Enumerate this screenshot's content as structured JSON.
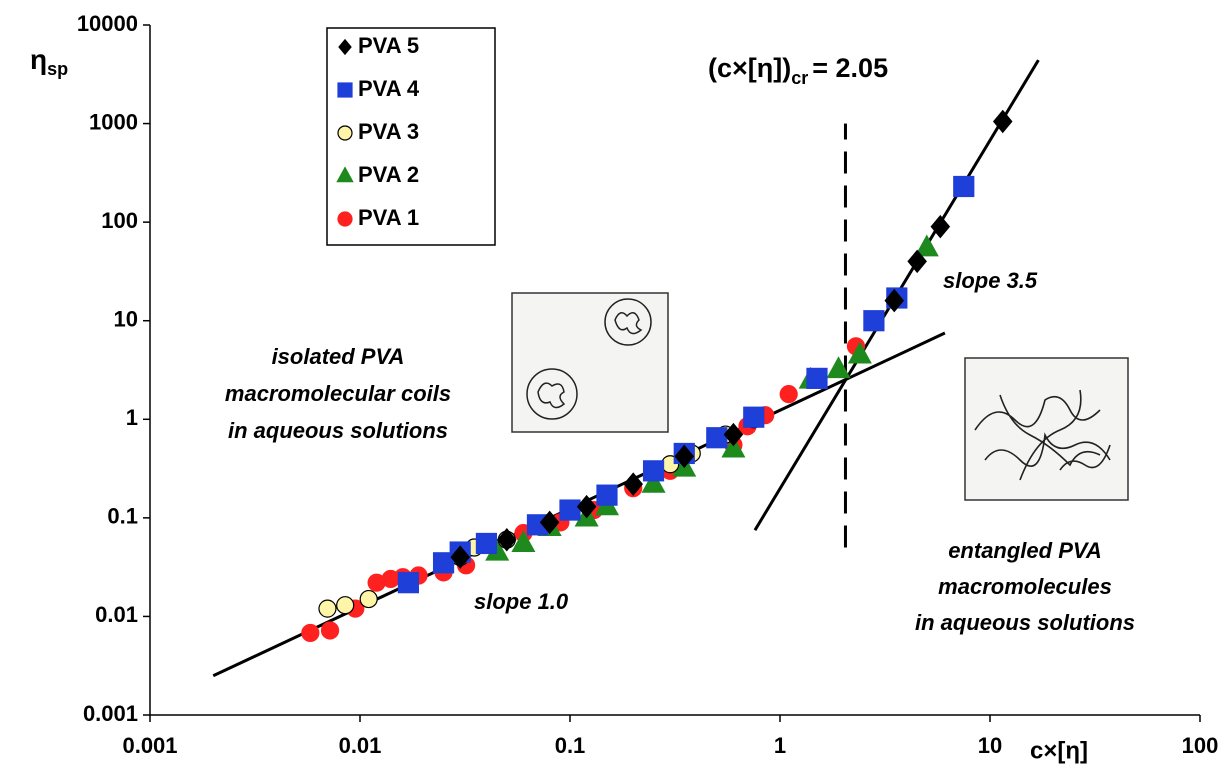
{
  "chart_data": {
    "type": "scatter",
    "xscale": "log",
    "yscale": "log",
    "xlim": [
      0.001,
      100
    ],
    "ylim": [
      0.001,
      10000
    ],
    "xticks": [
      0.001,
      0.01,
      0.1,
      1,
      10,
      100
    ],
    "yticks": [
      0.001,
      0.01,
      0.1,
      1,
      10,
      100,
      1000,
      10000
    ],
    "xlabel": "c×[η]",
    "ylabel_symbol": "η",
    "ylabel_subscript": "sp",
    "legend_position": "upper left",
    "series": [
      {
        "name": "PVA 5",
        "marker": "diamond",
        "color": "#000000",
        "edgecolor": "#000000",
        "x": [
          0.03,
          0.05,
          0.08,
          0.12,
          0.2,
          0.35,
          0.6,
          3.5,
          4.5,
          5.8,
          11.5
        ],
        "values": [
          0.04,
          0.06,
          0.09,
          0.13,
          0.22,
          0.42,
          0.7,
          16,
          40,
          90,
          1050
        ]
      },
      {
        "name": "PVA 4",
        "marker": "square",
        "color": "#1f3fd9",
        "edgecolor": "#1f3fd9",
        "x": [
          0.017,
          0.025,
          0.03,
          0.04,
          0.07,
          0.1,
          0.15,
          0.25,
          0.35,
          0.5,
          0.75,
          1.5,
          2.8,
          3.6,
          7.5
        ],
        "values": [
          0.022,
          0.035,
          0.045,
          0.055,
          0.085,
          0.12,
          0.17,
          0.3,
          0.45,
          0.65,
          1.05,
          2.6,
          10,
          17,
          230
        ]
      },
      {
        "name": "PVA 3",
        "marker": "circle",
        "color": "#fff5a8",
        "edgecolor": "#000000",
        "x": [
          0.007,
          0.0085,
          0.011,
          0.03,
          0.035,
          0.05,
          0.3,
          0.38,
          0.55,
          0.75
        ],
        "values": [
          0.012,
          0.013,
          0.015,
          0.04,
          0.05,
          0.06,
          0.35,
          0.45,
          0.7,
          1.0
        ]
      },
      {
        "name": "PVA 2",
        "marker": "triangle",
        "color": "#1e8a1e",
        "edgecolor": "#1e8a1e",
        "x": [
          0.045,
          0.06,
          0.08,
          0.12,
          0.15,
          0.25,
          0.35,
          0.6,
          1.4,
          1.9,
          2.4,
          5
        ],
        "values": [
          0.045,
          0.055,
          0.08,
          0.1,
          0.13,
          0.22,
          0.32,
          0.5,
          2.5,
          3.2,
          4.5,
          55
        ]
      },
      {
        "name": "PVA 1",
        "marker": "circle",
        "color": "#ff2020",
        "edgecolor": "#ff2020",
        "x": [
          0.0058,
          0.0072,
          0.0095,
          0.012,
          0.014,
          0.016,
          0.019,
          0.025,
          0.032,
          0.06,
          0.09,
          0.13,
          0.2,
          0.3,
          0.6,
          0.7,
          0.85,
          1.1,
          2.3
        ],
        "values": [
          0.0068,
          0.0072,
          0.012,
          0.022,
          0.024,
          0.025,
          0.026,
          0.028,
          0.033,
          0.07,
          0.09,
          0.12,
          0.2,
          0.3,
          0.55,
          0.85,
          1.1,
          1.8,
          5.5
        ]
      }
    ],
    "fit_lines": [
      {
        "x": [
          0.002,
          6.1
        ],
        "y": [
          0.0025,
          7.5
        ]
      },
      {
        "x": [
          0.76,
          17
        ],
        "y": [
          0.075,
          4400
        ]
      }
    ],
    "critical_line": {
      "x": [
        2.05,
        2.05
      ],
      "y": [
        0.05,
        1000
      ]
    },
    "critical_label": {
      "left": "(c×[η])",
      "sub": "cr",
      "right": "= 2.05"
    },
    "annotations": {
      "isolated": [
        "isolated PVA",
        "macromolecular coils",
        "in aqueous solutions"
      ],
      "entangled": [
        "entangled PVA",
        "macromolecules",
        "in aqueous solutions"
      ],
      "slope1": "slope 1.0",
      "slope2": "slope 3.5"
    }
  }
}
